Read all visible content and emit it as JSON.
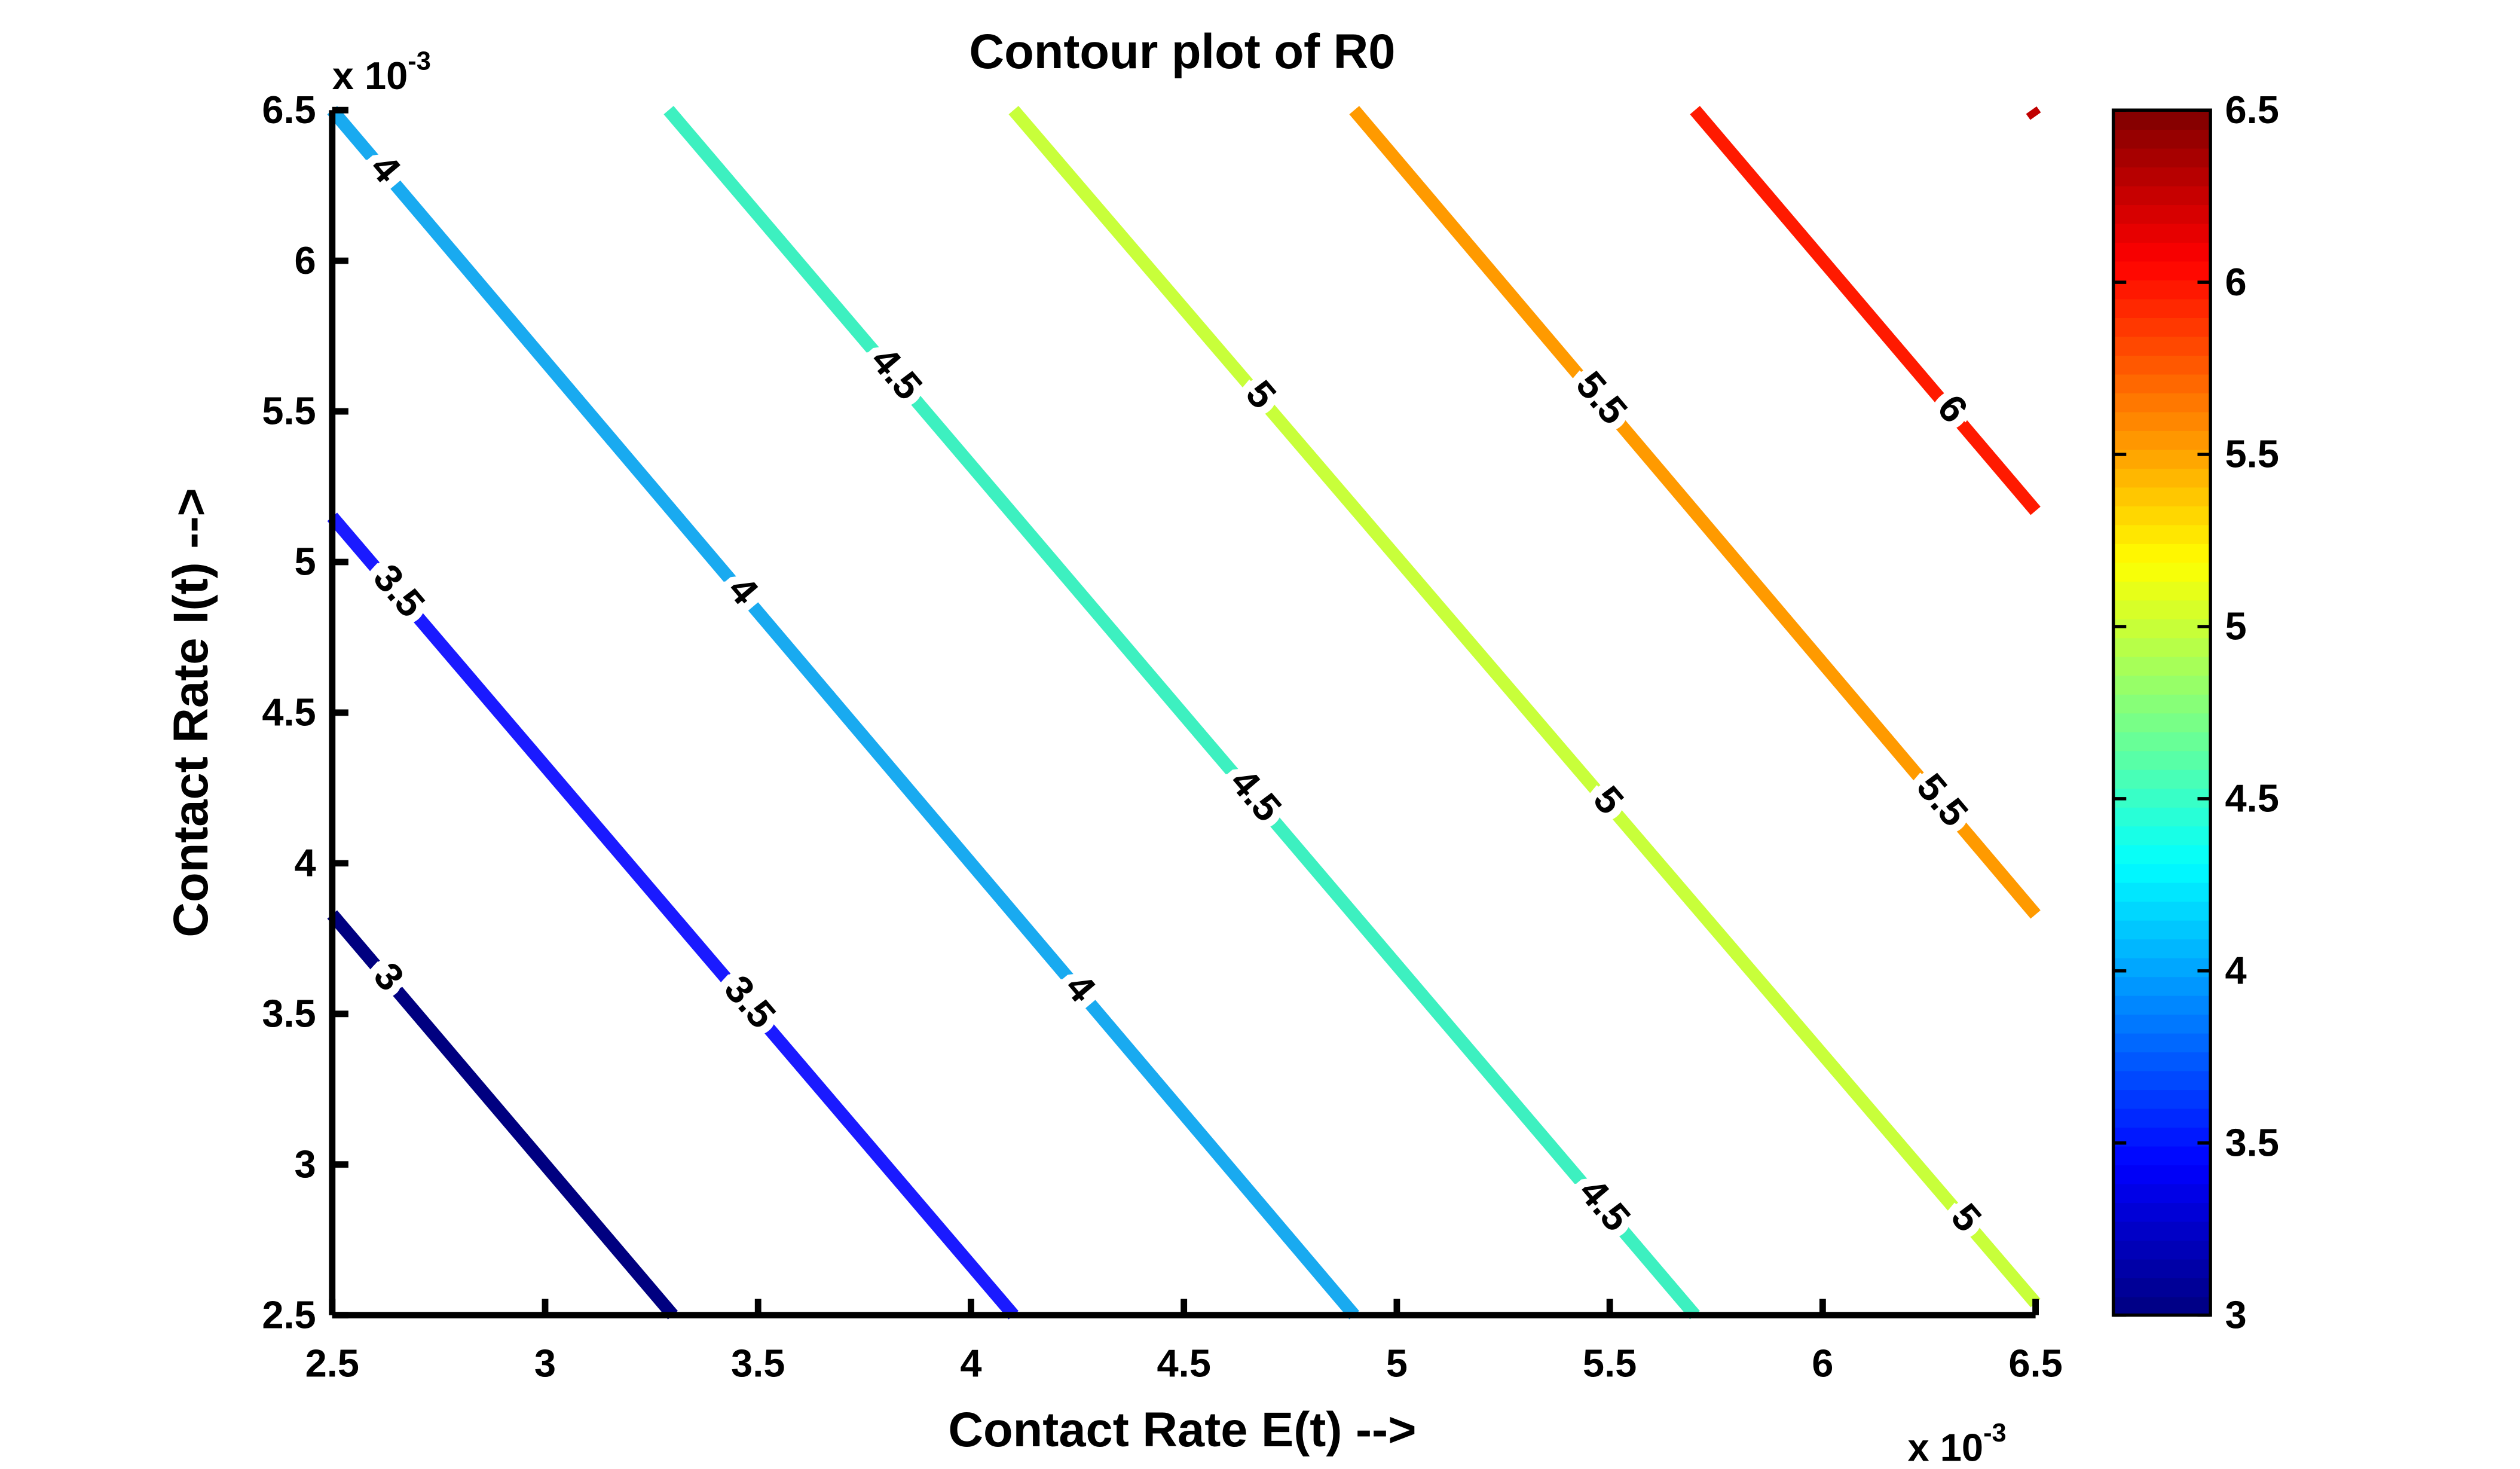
{
  "chart_data": {
    "type": "contour",
    "title": "Contour plot of R0",
    "x_label": "Contact Rate E(t) -->",
    "y_label": "Contact Rate I(t) -->",
    "x_multiplier": {
      "base": "x 10",
      "exponent": "-3"
    },
    "y_multiplier": {
      "base": "x 10",
      "exponent": "-3"
    },
    "xlim": [
      2.5,
      6.5
    ],
    "ylim": [
      2.5,
      6.5
    ],
    "xticks": [
      2.5,
      3,
      3.5,
      4,
      4.5,
      5,
      5.5,
      6,
      6.5
    ],
    "yticks": [
      2.5,
      3,
      3.5,
      4,
      4.5,
      5,
      5.5,
      6,
      6.5
    ],
    "colormap": "jet",
    "clim": [
      3,
      6.5
    ],
    "cticks": [
      3,
      3.5,
      4,
      4.5,
      5,
      5.5,
      6,
      6.5
    ],
    "contours": [
      {
        "level": 3,
        "color": "#000080",
        "x": [
          2.5,
          3.3
        ],
        "y": [
          3.83,
          2.5
        ]
      },
      {
        "level": 3.5,
        "color": "#1a1aff",
        "x": [
          2.5,
          4.1
        ],
        "y": [
          5.15,
          2.5
        ]
      },
      {
        "level": 4,
        "color": "#19aaf0",
        "x": [
          2.5,
          4.9
        ],
        "y": [
          6.5,
          2.5
        ]
      },
      {
        "level": 4.5,
        "color": "#3df0c0",
        "x": [
          3.29,
          5.7
        ],
        "y": [
          6.5,
          2.5
        ]
      },
      {
        "level": 5,
        "color": "#c8ff3a",
        "x": [
          4.1,
          6.5
        ],
        "y": [
          6.5,
          2.54
        ]
      },
      {
        "level": 5.5,
        "color": "#ff9a00",
        "x": [
          4.9,
          6.5
        ],
        "y": [
          6.5,
          3.83
        ]
      },
      {
        "level": 6,
        "color": "#ff1a00",
        "x": [
          5.7,
          6.5
        ],
        "y": [
          6.5,
          5.17
        ]
      },
      {
        "level": 6.5,
        "color": "#c00000",
        "x": [
          6.49,
          6.5
        ],
        "y": [
          6.5,
          6.48
        ]
      }
    ]
  }
}
